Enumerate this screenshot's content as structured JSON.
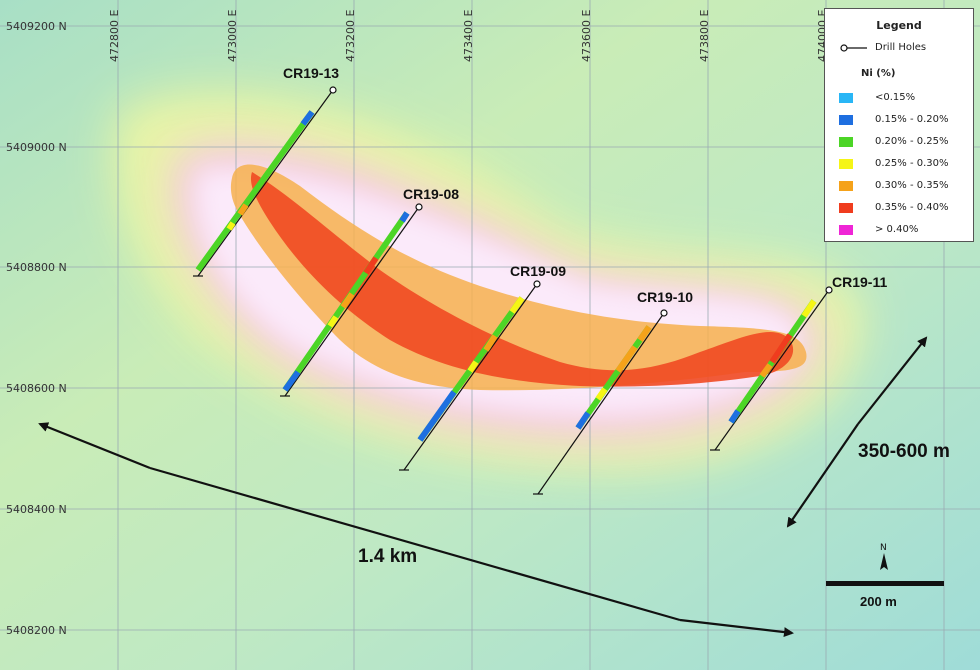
{
  "eastings": [
    "472800 E",
    "473000 E",
    "473200 E",
    "473400 E",
    "473600 E",
    "473800 E",
    "474000 E"
  ],
  "northings": [
    "5409200 N",
    "5409000 N",
    "5408800 N",
    "5408600 N",
    "5408400 N",
    "5408200 N"
  ],
  "holes": [
    "CR19-13",
    "CR19-08",
    "CR19-09",
    "CR19-10",
    "CR19-11"
  ],
  "annotations": {
    "length": "1.4 km",
    "width": "350-600 m",
    "scale": "200 m",
    "north": "N"
  },
  "legend": {
    "title": "Legend",
    "drill_holes": "Drill Holes",
    "subtitle": "Ni (%)",
    "classes": [
      {
        "label": "<0.15%",
        "color": "#29b6f6"
      },
      {
        "label": "0.15% - 0.20%",
        "color": "#1e6fe0"
      },
      {
        "label": "0.20% - 0.25%",
        "color": "#4cd526"
      },
      {
        "label": "0.25% - 0.30%",
        "color": "#f5f516"
      },
      {
        "label": "0.30% - 0.35%",
        "color": "#f5a21a"
      },
      {
        "label": "0.35% - 0.40%",
        "color": "#f03c1e"
      },
      {
        "label": "> 0.40%",
        "color": "#ef25d6"
      }
    ]
  }
}
